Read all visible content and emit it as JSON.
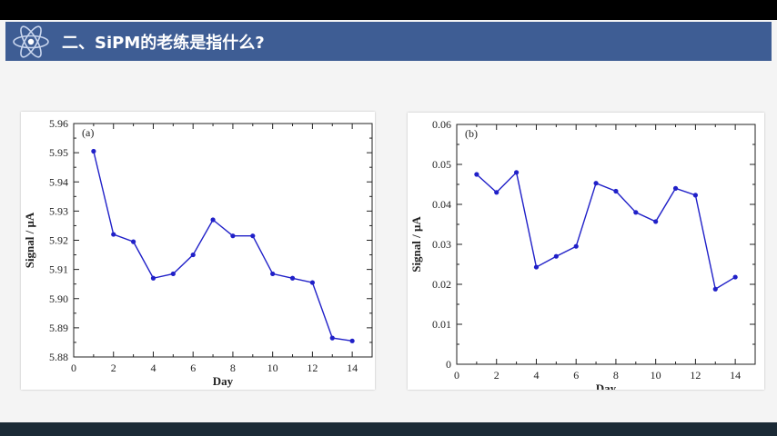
{
  "header": {
    "title": "二、SiPM的老练是指什么?",
    "logo_icon": "atom-icon",
    "bar_color": "#3e5d94"
  },
  "chart_data": [
    {
      "type": "line",
      "panel_label": "(a)",
      "xlabel": "Day",
      "ylabel": "Signal / μA",
      "xlim": [
        0,
        15
      ],
      "ylim": [
        5.88,
        5.96
      ],
      "xticks": [
        0,
        2,
        4,
        6,
        8,
        10,
        12,
        14
      ],
      "yticks": [
        5.88,
        5.89,
        5.9,
        5.91,
        5.92,
        5.93,
        5.94,
        5.95,
        5.96
      ],
      "ytick_labels": [
        "5.88",
        "5.89",
        "5.90",
        "5.91",
        "5.92",
        "5.93",
        "5.94",
        "5.95",
        "5.96"
      ],
      "x": [
        1,
        2,
        3,
        4,
        5,
        6,
        7,
        8,
        9,
        10,
        11,
        12,
        13,
        14
      ],
      "values": [
        5.9505,
        5.922,
        5.9195,
        5.907,
        5.9085,
        5.915,
        5.927,
        5.9215,
        5.9215,
        5.9085,
        5.907,
        5.9055,
        5.8865,
        5.8855
      ],
      "color": "#2020c8",
      "grid": false
    },
    {
      "type": "line",
      "panel_label": "(b)",
      "xlabel": "Day",
      "ylabel": "Signal / μA",
      "xlim": [
        0,
        15
      ],
      "ylim": [
        0,
        0.06
      ],
      "xticks": [
        0,
        2,
        4,
        6,
        8,
        10,
        12,
        14
      ],
      "yticks": [
        0,
        0.01,
        0.02,
        0.03,
        0.04,
        0.05,
        0.06
      ],
      "ytick_labels": [
        "0",
        "0.01",
        "0.02",
        "0.03",
        "0.04",
        "0.05",
        "0.06"
      ],
      "x": [
        1,
        2,
        3,
        4,
        5,
        6,
        7,
        8,
        9,
        10,
        11,
        12,
        13,
        14
      ],
      "values": [
        0.0475,
        0.043,
        0.048,
        0.0243,
        0.027,
        0.0295,
        0.0453,
        0.0433,
        0.038,
        0.0357,
        0.044,
        0.0423,
        0.0188,
        0.0218
      ],
      "color": "#2020c8",
      "grid": false
    }
  ]
}
